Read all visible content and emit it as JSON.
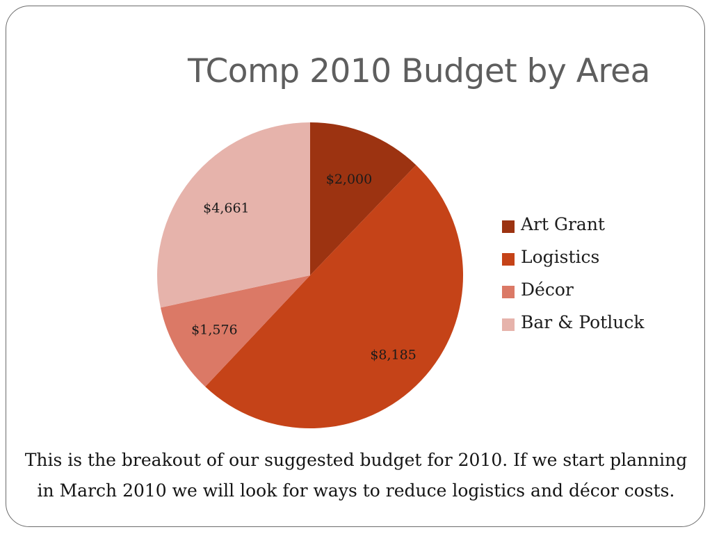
{
  "slide": {
    "title": "TComp 2010 Budget by Area",
    "caption_lines": [
      "This is the breakout of our suggested budget for 2010. If we start planning",
      "in March 2010 we will look for ways to reduce logistics and décor costs."
    ]
  },
  "chart_data": {
    "type": "pie",
    "categories": [
      "Art Grant",
      "Logistics",
      "Décor",
      "Bar & Potluck"
    ],
    "values": [
      2000,
      8185,
      1576,
      4661
    ],
    "value_labels": [
      "$2,000",
      "$8,185",
      "$1,576",
      "$4,661"
    ],
    "colors": [
      "#9C3311",
      "#C54318",
      "#DB7966",
      "#E6B3AB"
    ],
    "legend_position": "right",
    "start": "top",
    "direction": "clockwise"
  },
  "legend": {
    "items": [
      {
        "label": "Art Grant",
        "color": "#9C3311"
      },
      {
        "label": "Logistics",
        "color": "#C54318"
      },
      {
        "label": "Décor",
        "color": "#DB7966"
      },
      {
        "label": "Bar & Potluck",
        "color": "#E6B3AB"
      }
    ]
  }
}
